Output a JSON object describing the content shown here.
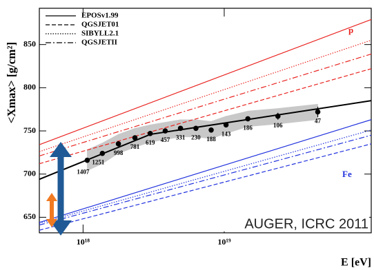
{
  "chart_data": {
    "type": "scatter",
    "ylabel": "<Xmax> [g/cm²]",
    "xlabel": "E [eV]",
    "annotation": "AUGER, ICRC 2011",
    "proton_label": "p",
    "iron_label": "Fe",
    "log_x": true,
    "xlim": [
      4.9e+17,
      1.1e+20
    ],
    "ylim": [
      632,
      892
    ],
    "xticks": [
      {
        "value": 1e+18,
        "label": "10¹⁸"
      },
      {
        "value": 1e+19,
        "label": "10¹⁹"
      }
    ],
    "yticks": [
      650,
      700,
      750,
      800,
      850
    ],
    "proton_color": "#e8231f",
    "iron_color": "#2233dd",
    "models_x": [
      4.9e+17,
      1.1e+20
    ],
    "models": [
      {
        "name": "EPOSv1.99",
        "dash": "solid",
        "proton": [
          734,
          879
        ],
        "iron": [
          644,
          763
        ]
      },
      {
        "name": "QGSJET01",
        "dash": "dashed",
        "proton": [
          712,
          822
        ],
        "iron": [
          635,
          735
        ]
      },
      {
        "name": "SIBYLL2.1",
        "dash": "dotted",
        "proton": [
          726,
          855
        ],
        "iron": [
          643,
          751
        ]
      },
      {
        "name": "QGSJETII",
        "dash": "dashdot",
        "proton": [
          721,
          839
        ],
        "iron": [
          641,
          745
        ]
      }
    ],
    "fit_x": [
      4.9e+17,
      3e+18,
      1.1e+20
    ],
    "fit_values": [
      694,
      746,
      785
    ],
    "x": [
      1.07e+18,
      1.37e+18,
      1.78e+18,
      2.33e+18,
      2.99e+18,
      3.82e+18,
      4.9e+18,
      6.3e+18,
      8.08e+18,
      1.03e+19,
      1.47e+19,
      2.4e+19,
      4.6e+19
    ],
    "values": [
      716,
      724,
      735,
      742,
      747,
      750,
      753,
      753,
      751,
      757,
      764,
      767,
      772
    ],
    "stat_errors": [
      2,
      2,
      2,
      2,
      2,
      2,
      2,
      2,
      3,
      3,
      3,
      4,
      6
    ],
    "sys_errors": [
      12,
      12,
      11,
      11,
      10,
      10,
      10,
      10,
      10,
      10,
      9,
      9,
      9
    ],
    "event_counts": [
      1407,
      1251,
      998,
      781,
      619,
      457,
      331,
      230,
      188,
      143,
      186,
      106,
      47
    ]
  }
}
